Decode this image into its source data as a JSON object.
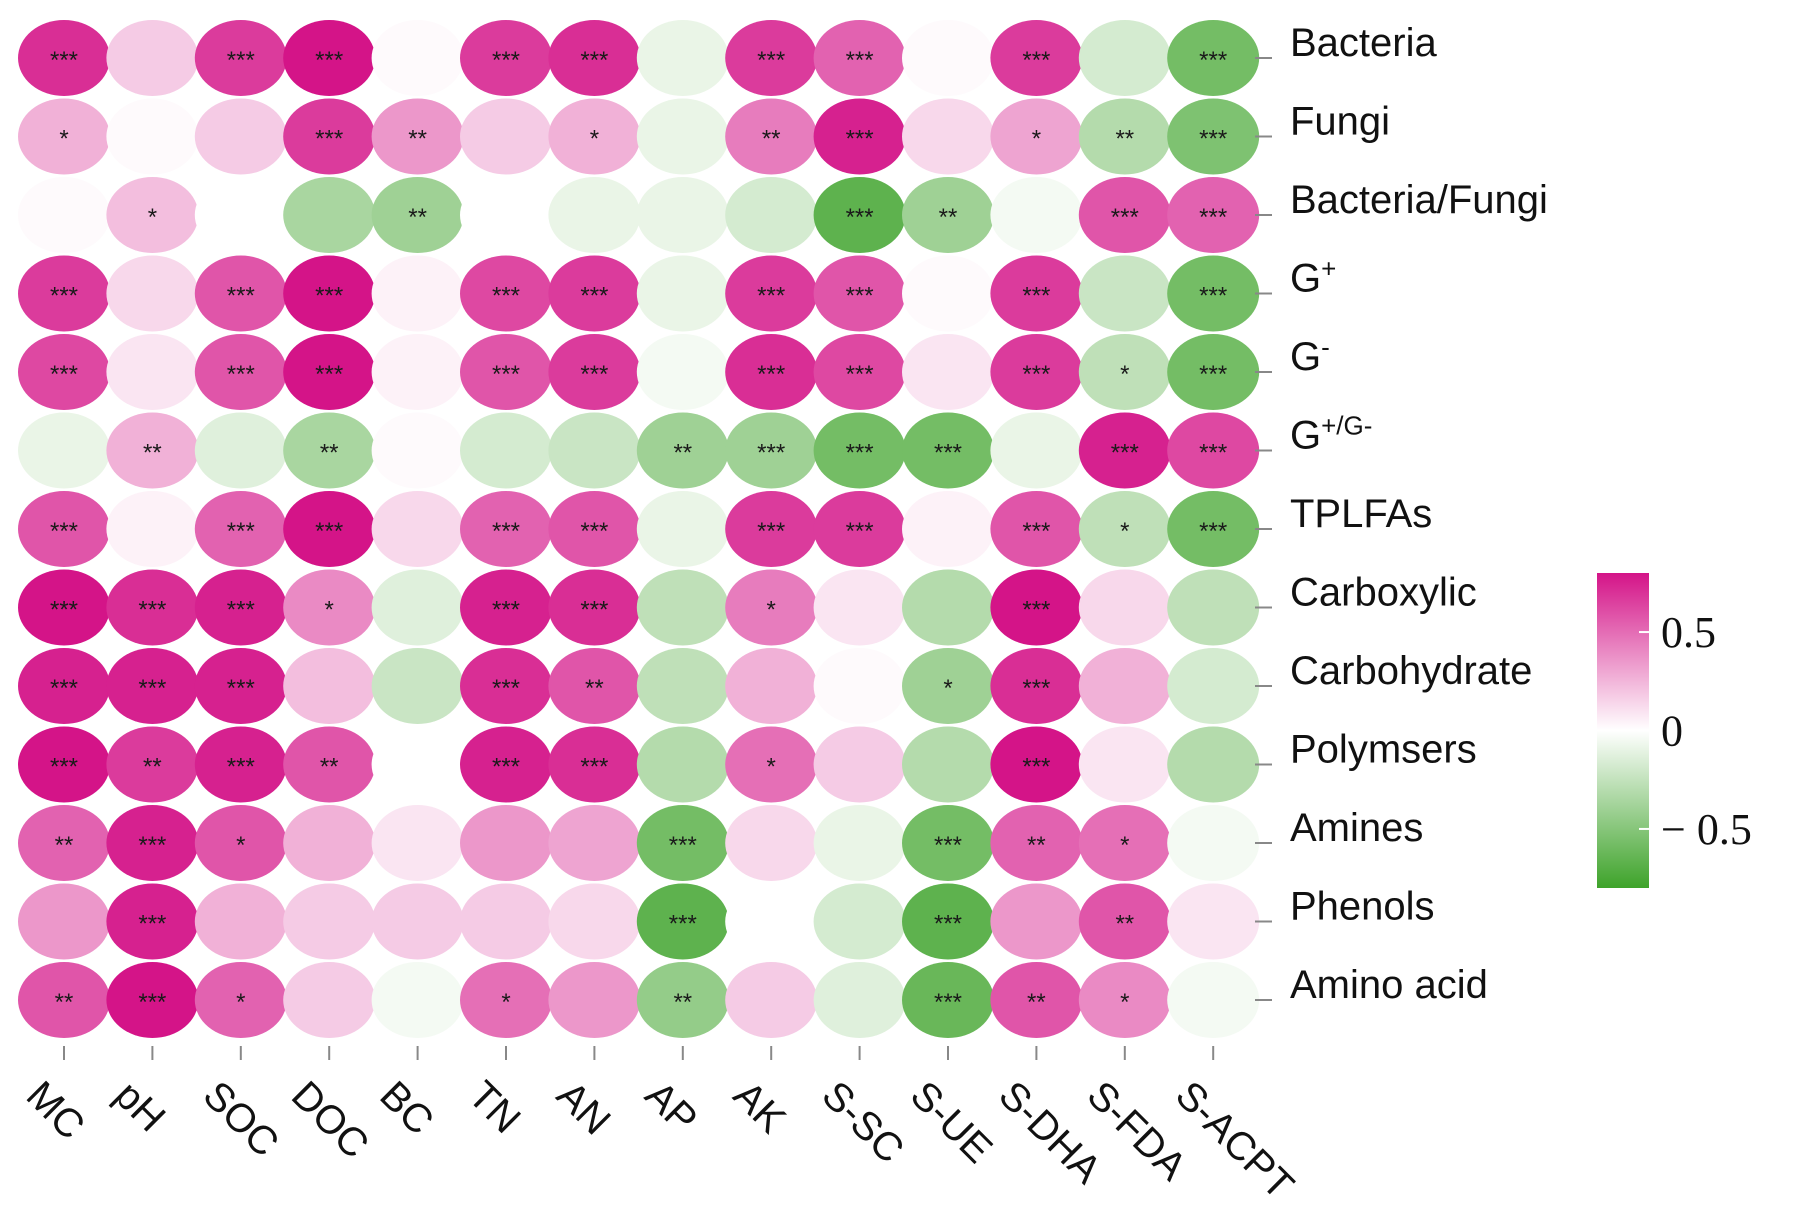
{
  "chart_data": {
    "type": "heatmap",
    "title": "",
    "xlabel": "",
    "ylabel": "",
    "columns": [
      "MC",
      "pH",
      "SOC",
      "DOC",
      "BC",
      "TN",
      "AN",
      "AP",
      "AK",
      "S-SC",
      "S-UE",
      "S-DHA",
      "S-FDA",
      "S-ACPT"
    ],
    "rows": [
      {
        "label": "Bacteria",
        "sup": "",
        "values": [
          0.8,
          0.2,
          0.75,
          0.9,
          0.02,
          0.75,
          0.8,
          -0.1,
          0.75,
          0.6,
          0.02,
          0.75,
          -0.2,
          -0.65
        ],
        "sig": [
          "***",
          "",
          "***",
          "***",
          "",
          "***",
          "***",
          "",
          "***",
          "***",
          "",
          "***",
          "",
          "***"
        ]
      },
      {
        "label": "Fungi",
        "sup": "",
        "values": [
          0.3,
          0.02,
          0.2,
          0.75,
          0.4,
          0.2,
          0.3,
          -0.1,
          0.5,
          0.85,
          0.15,
          0.35,
          -0.35,
          -0.6
        ],
        "sig": [
          "*",
          "",
          "",
          "***",
          "**",
          "",
          "*",
          "",
          "**",
          "***",
          "",
          "*",
          "**",
          "***"
        ]
      },
      {
        "label": "Bacteria/Fungi",
        "sup": "",
        "values": [
          0.02,
          0.25,
          0.0,
          -0.4,
          -0.45,
          0.0,
          -0.1,
          -0.1,
          -0.2,
          -0.75,
          -0.45,
          -0.05,
          0.65,
          0.6
        ],
        "sig": [
          "",
          "*",
          "",
          "",
          "**",
          "",
          "",
          "",
          "",
          "***",
          "**",
          "",
          "***",
          "***"
        ]
      },
      {
        "label": "G",
        "sup": "+",
        "values": [
          0.75,
          0.15,
          0.65,
          0.9,
          0.05,
          0.7,
          0.75,
          -0.1,
          0.75,
          0.65,
          0.02,
          0.75,
          -0.25,
          -0.65
        ],
        "sig": [
          "***",
          "",
          "***",
          "***",
          "",
          "***",
          "***",
          "",
          "***",
          "***",
          "",
          "***",
          "",
          "***"
        ]
      },
      {
        "label": "G",
        "sup": "-",
        "values": [
          0.7,
          0.1,
          0.65,
          0.9,
          0.05,
          0.65,
          0.75,
          -0.05,
          0.8,
          0.7,
          0.1,
          0.75,
          -0.3,
          -0.65
        ],
        "sig": [
          "***",
          "",
          "***",
          "***",
          "",
          "***",
          "***",
          "",
          "***",
          "***",
          "",
          "***",
          "*",
          "***"
        ]
      },
      {
        "label": "G",
        "sup": "+/G-",
        "values": [
          -0.1,
          0.3,
          -0.15,
          -0.4,
          0.02,
          -0.2,
          -0.25,
          -0.45,
          -0.45,
          -0.65,
          -0.65,
          -0.1,
          0.85,
          0.7
        ],
        "sig": [
          "",
          "**",
          "",
          "**",
          "",
          "",
          "",
          "**",
          "***",
          "***",
          "***",
          "",
          "***",
          "***"
        ]
      },
      {
        "label": "TPLFAs",
        "sup": "",
        "values": [
          0.65,
          0.05,
          0.6,
          0.9,
          0.15,
          0.6,
          0.65,
          -0.1,
          0.75,
          0.75,
          0.05,
          0.65,
          -0.3,
          -0.65
        ],
        "sig": [
          "***",
          "",
          "***",
          "***",
          "",
          "***",
          "***",
          "",
          "***",
          "***",
          "",
          "***",
          "*",
          "***"
        ]
      },
      {
        "label": "Carboxylic",
        "sup": "",
        "values": [
          0.9,
          0.8,
          0.85,
          0.45,
          -0.15,
          0.85,
          0.8,
          -0.3,
          0.5,
          0.1,
          -0.35,
          0.9,
          0.15,
          -0.3
        ],
        "sig": [
          "***",
          "***",
          "***",
          "*",
          "",
          "***",
          "***",
          "",
          "*",
          "",
          "",
          "***",
          "",
          ""
        ]
      },
      {
        "label": "Carbohydrate",
        "sup": "",
        "values": [
          0.85,
          0.85,
          0.85,
          0.25,
          -0.25,
          0.8,
          0.65,
          -0.3,
          0.3,
          0.02,
          -0.45,
          0.8,
          0.3,
          -0.2
        ],
        "sig": [
          "***",
          "***",
          "***",
          "",
          "",
          "***",
          "**",
          "",
          "",
          "",
          "*",
          "***",
          "",
          ""
        ]
      },
      {
        "label": "Polymsers",
        "sup": "",
        "values": [
          0.9,
          0.75,
          0.85,
          0.65,
          0.0,
          0.85,
          0.8,
          -0.35,
          0.55,
          0.2,
          -0.35,
          0.9,
          0.1,
          -0.35
        ],
        "sig": [
          "***",
          "**",
          "***",
          "**",
          "",
          "***",
          "***",
          "",
          "*",
          "",
          "",
          "***",
          "",
          ""
        ]
      },
      {
        "label": "Amines",
        "sup": "",
        "values": [
          0.6,
          0.85,
          0.65,
          0.3,
          0.1,
          0.4,
          0.35,
          -0.65,
          0.15,
          -0.1,
          -0.65,
          0.6,
          0.55,
          -0.05
        ],
        "sig": [
          "**",
          "***",
          "*",
          "",
          "",
          "",
          "",
          "***",
          "",
          "",
          "***",
          "**",
          "*",
          ""
        ]
      },
      {
        "label": "Phenols",
        "sup": "",
        "values": [
          0.4,
          0.85,
          0.3,
          0.2,
          0.2,
          0.2,
          0.15,
          -0.75,
          0.0,
          -0.2,
          -0.75,
          0.4,
          0.65,
          0.1
        ],
        "sig": [
          "",
          "***",
          "",
          "",
          "",
          "",
          "",
          "***",
          "",
          "",
          "***",
          "",
          "**",
          ""
        ]
      },
      {
        "label": "Amino acid",
        "sup": "",
        "values": [
          0.65,
          0.9,
          0.6,
          0.2,
          -0.05,
          0.55,
          0.4,
          -0.5,
          0.2,
          -0.15,
          -0.7,
          0.65,
          0.45,
          -0.05
        ],
        "sig": [
          "**",
          "***",
          "*",
          "",
          "",
          "*",
          "",
          "**",
          "",
          "",
          "***",
          "**",
          "*",
          ""
        ]
      }
    ],
    "colorbar": {
      "range": [
        -0.8,
        0.8
      ],
      "ticks": [
        {
          "value": 0.5,
          "label": "0.5"
        },
        {
          "value": 0,
          "label": "0"
        },
        {
          "value": -0.5,
          "label": "− 0.5"
        }
      ],
      "colors": {
        "high": "#d41488",
        "mid": "#ffffff",
        "low": "#3ea32a"
      }
    }
  }
}
